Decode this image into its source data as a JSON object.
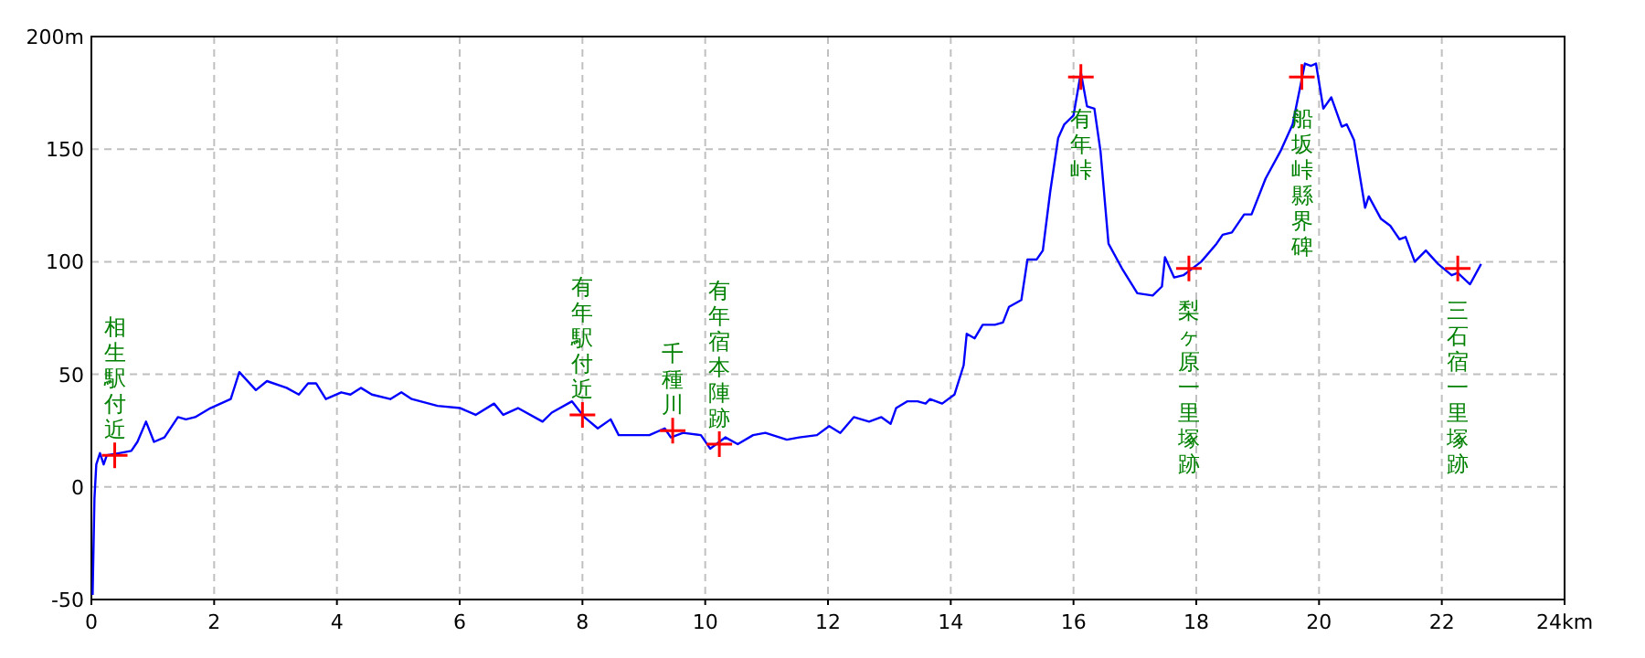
{
  "chart_data": {
    "type": "line",
    "xlim": [
      0,
      24
    ],
    "ylim": [
      -50,
      200
    ],
    "xticks": [
      0,
      2,
      4,
      6,
      8,
      10,
      12,
      14,
      16,
      18,
      20,
      22,
      {
        "value": 24,
        "label": "24km"
      }
    ],
    "yticks": [
      -50,
      0,
      50,
      100,
      150,
      {
        "value": 200,
        "label": "200m"
      }
    ],
    "grid": true,
    "series": [
      {
        "color": "#0000ff",
        "marker": "none",
        "x": [
          0.02,
          0.05,
          0.08,
          0.14,
          0.2,
          0.25,
          0.45,
          0.65,
          0.75,
          0.89,
          1.02,
          1.19,
          1.41,
          1.54,
          1.69,
          1.94,
          2.27,
          2.41,
          2.68,
          2.86,
          3.18,
          3.38,
          3.53,
          3.66,
          3.82,
          4.07,
          4.22,
          4.39,
          4.57,
          4.87,
          5.05,
          5.22,
          5.64,
          6.01,
          6.26,
          6.56,
          6.71,
          6.95,
          7.35,
          7.5,
          7.83,
          8.03,
          8.25,
          8.46,
          8.59,
          8.84,
          9.09,
          9.34,
          9.44,
          9.64,
          9.93,
          10.08,
          10.33,
          10.53,
          10.78,
          10.98,
          11.33,
          11.53,
          11.82,
          12.02,
          12.2,
          12.42,
          12.67,
          12.87,
          13.02,
          13.11,
          13.29,
          13.46,
          13.59,
          13.66,
          13.86,
          14.06,
          14.21,
          14.26,
          14.39,
          14.52,
          14.72,
          14.85,
          14.95,
          15.15,
          15.25,
          15.4,
          15.5,
          15.62,
          15.75,
          15.85,
          16.0,
          16.12,
          16.22,
          16.34,
          16.44,
          16.57,
          16.79,
          17.04,
          17.29,
          17.44,
          17.49,
          17.64,
          17.79,
          18.08,
          18.33,
          18.43,
          18.58,
          18.78,
          18.9,
          19.13,
          19.37,
          19.57,
          19.77,
          19.87,
          19.95,
          20.07,
          20.2,
          20.37,
          20.45,
          20.57,
          20.75,
          20.81,
          21.01,
          21.16,
          21.31,
          21.41,
          21.56,
          21.74,
          21.94,
          22.16,
          22.26,
          22.46,
          22.64
        ],
        "values": [
          -48,
          -5,
          10,
          15,
          10,
          14,
          15,
          16,
          20,
          29,
          20,
          22,
          31,
          30,
          31,
          35,
          39,
          51,
          43,
          47,
          44,
          41,
          46,
          46,
          39,
          42,
          41,
          44,
          41,
          39,
          42,
          39,
          36,
          35,
          32,
          37,
          32,
          35,
          29,
          33,
          38,
          31,
          26,
          30,
          23,
          23,
          23,
          26,
          22,
          24,
          23,
          17,
          22,
          19,
          23,
          24,
          21,
          22,
          23,
          27,
          24,
          31,
          29,
          31,
          28,
          35,
          38,
          38,
          37,
          39,
          37,
          41,
          54,
          68,
          66,
          72,
          72,
          73,
          80,
          83,
          101,
          101,
          105,
          131,
          155,
          161,
          165,
          184,
          169,
          168,
          149,
          108,
          97,
          86,
          85,
          89,
          102,
          93,
          94,
          100,
          108,
          112,
          113,
          121,
          121,
          137,
          149,
          161,
          188,
          187,
          188,
          168,
          173,
          160,
          161,
          154,
          124,
          129,
          119,
          116,
          110,
          111,
          100,
          105,
          99,
          94,
          95,
          90,
          99
        ]
      },
      {
        "type": "scatter",
        "color": "#ff0000",
        "marker": "cross",
        "x": [
          0.38,
          8.0,
          9.47,
          10.23,
          16.12,
          17.88,
          19.72,
          22.26
        ],
        "values": [
          14,
          32,
          25,
          19,
          182,
          97,
          182,
          97
        ]
      }
    ],
    "annotations": [
      {
        "text": "相生駅付近",
        "x": 0.38,
        "y": 14
      },
      {
        "text": "有年駅付近",
        "x": 8.0,
        "y": 32
      },
      {
        "text": "千種川",
        "x": 9.47,
        "y": 25
      },
      {
        "text": "有年宿本陣跡",
        "x": 10.23,
        "y": 19
      },
      {
        "text": "有年峠",
        "x": 16.12,
        "y": 182
      },
      {
        "text": "梨ヶ原一里塚跡",
        "x": 17.88,
        "y": 97
      },
      {
        "text": "船坂峠縣界碑",
        "x": 19.72,
        "y": 182
      },
      {
        "text": "三石宿一里塚跡",
        "x": 22.26,
        "y": 97
      }
    ]
  }
}
